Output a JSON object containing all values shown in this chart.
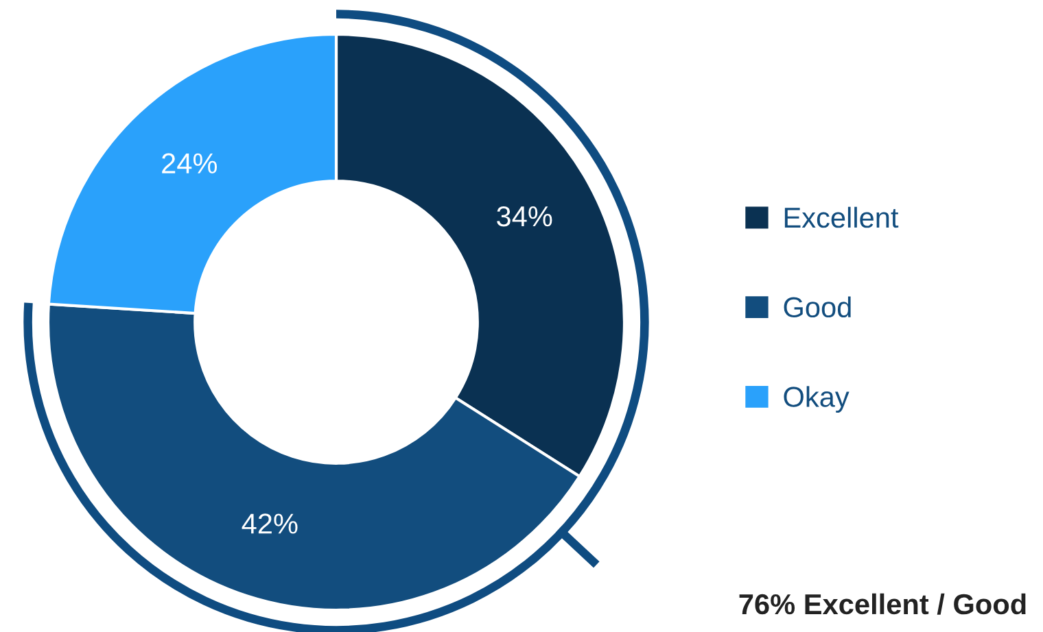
{
  "chart_data": {
    "type": "donut",
    "categories": [
      "Excellent",
      "Good",
      "Okay"
    ],
    "values": [
      34,
      42,
      24
    ],
    "colors": [
      "#0a3152",
      "#124d7e",
      "#2aa1fb"
    ],
    "value_labels": [
      "34%",
      "42%",
      "24%"
    ],
    "legend": "right",
    "annotations": [
      "76% Excellent / Good"
    ]
  }
}
